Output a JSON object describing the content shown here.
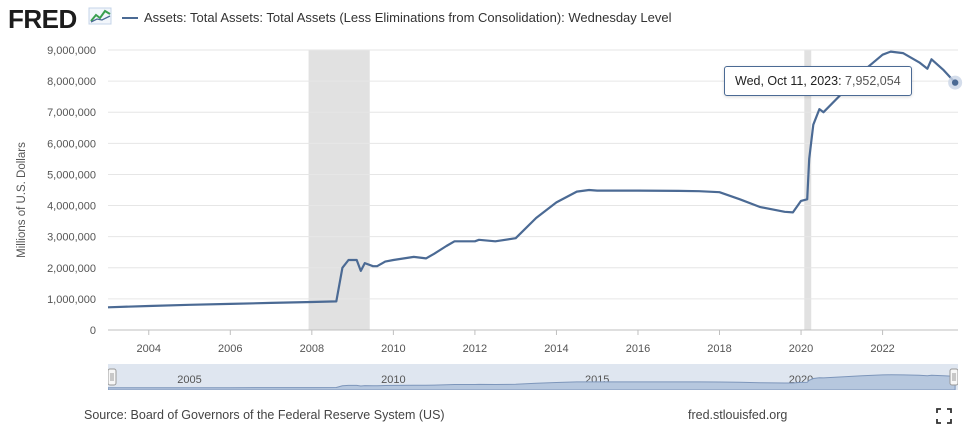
{
  "header": {
    "logo_text": "FRED",
    "series_title": "Assets: Total Assets: Total Assets (Less Eliminations from Consolidation): Wednesday Level"
  },
  "colors": {
    "series": "#4b6a94",
    "recession": "#e1e1e1",
    "navigator_fill": "#c9d5e6",
    "gridline": "#e6e6e6"
  },
  "tooltip": {
    "date": "Wed, Oct 11, 2023:",
    "value": "7,952,054"
  },
  "chart_data": {
    "type": "line",
    "title": "Assets: Total Assets: Total Assets (Less Eliminations from Consolidation): Wednesday Level",
    "xlabel": "",
    "ylabel": "Millions of U.S. Dollars",
    "xlim": [
      2003.0,
      2023.85
    ],
    "ylim": [
      0,
      9000000
    ],
    "yticks": [
      0,
      1000000,
      2000000,
      3000000,
      4000000,
      5000000,
      6000000,
      7000000,
      8000000,
      9000000
    ],
    "ytick_labels": [
      "0",
      "1,000,000",
      "2,000,000",
      "3,000,000",
      "4,000,000",
      "5,000,000",
      "6,000,000",
      "7,000,000",
      "8,000,000",
      "9,000,000"
    ],
    "xticks": [
      2004,
      2006,
      2008,
      2010,
      2012,
      2014,
      2016,
      2018,
      2020,
      2022
    ],
    "xtick_labels": [
      "2004",
      "2006",
      "2008",
      "2010",
      "2012",
      "2014",
      "2016",
      "2018",
      "2020",
      "2022"
    ],
    "recessions": [
      [
        2007.92,
        2009.42
      ],
      [
        2020.08,
        2020.25
      ]
    ],
    "grid": true,
    "series": [
      {
        "name": "Total Assets",
        "x": [
          2003.0,
          2004.0,
          2005.0,
          2006.0,
          2007.0,
          2008.0,
          2008.6,
          2008.75,
          2008.9,
          2009.1,
          2009.2,
          2009.3,
          2009.5,
          2009.6,
          2009.8,
          2010.0,
          2010.5,
          2010.8,
          2011.0,
          2011.3,
          2011.5,
          2012.0,
          2012.1,
          2012.5,
          2013.0,
          2013.5,
          2014.0,
          2014.5,
          2014.8,
          2015.0,
          2016.0,
          2017.0,
          2017.5,
          2018.0,
          2018.5,
          2019.0,
          2019.6,
          2019.8,
          2020.0,
          2020.15,
          2020.2,
          2020.3,
          2020.45,
          2020.55,
          2021.0,
          2021.5,
          2022.0,
          2022.2,
          2022.5,
          2022.9,
          2023.1,
          2023.2,
          2023.5,
          2023.78
        ],
        "values": [
          730000,
          770000,
          810000,
          840000,
          870000,
          900000,
          920000,
          2000000,
          2250000,
          2250000,
          1900000,
          2150000,
          2050000,
          2050000,
          2200000,
          2250000,
          2350000,
          2300000,
          2450000,
          2700000,
          2850000,
          2850000,
          2900000,
          2850000,
          2950000,
          3600000,
          4100000,
          4450000,
          4500000,
          4480000,
          4480000,
          4470000,
          4460000,
          4430000,
          4200000,
          3950000,
          3800000,
          3780000,
          4150000,
          4200000,
          5500000,
          6600000,
          7100000,
          7000000,
          7600000,
          8300000,
          8850000,
          8950000,
          8900000,
          8600000,
          8400000,
          8700000,
          8350000,
          7952054
        ]
      }
    ],
    "navigator_labels": [
      "2005",
      "2010",
      "2015",
      "2020"
    ],
    "navigator_label_years": [
      2005,
      2010,
      2015,
      2020
    ]
  },
  "footer": {
    "source": "Source: Board of Governors of the Federal Reserve System (US)",
    "site": "fred.stlouisfed.org"
  },
  "icons": {
    "fullscreen": "fullscreen-icon",
    "logo_sparkline": "fred-sparkline-icon"
  }
}
